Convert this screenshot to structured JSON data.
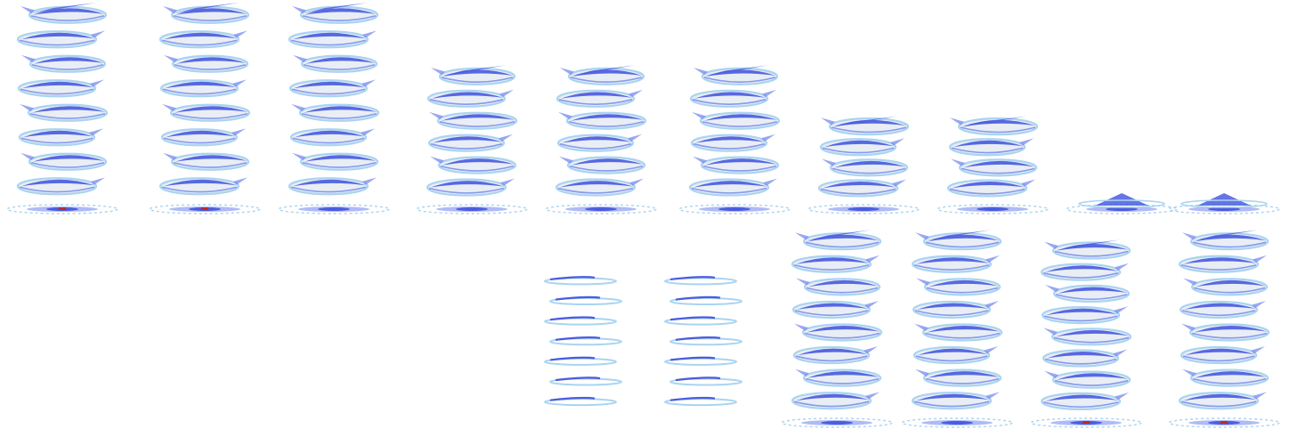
{
  "sheet": {
    "kind": "sprite-sheet",
    "subject": "tornado",
    "background": "#ffffff",
    "colors": {
      "deep_blue": "#4b5ce0",
      "mid_blue": "#6f82ee",
      "light_blue": "#a9d4f0",
      "pale": "#e8eef4",
      "core_red": "#c8281e"
    },
    "frames": [
      {
        "id": "f1",
        "height": 1.0,
        "rings": 8,
        "ground": true,
        "core": true,
        "style": "full"
      },
      {
        "id": "f2",
        "height": 1.0,
        "rings": 8,
        "ground": true,
        "core": true,
        "style": "full"
      },
      {
        "id": "f3",
        "height": 1.0,
        "rings": 8,
        "ground": true,
        "core": false,
        "style": "full"
      },
      {
        "id": "f4",
        "height": 0.68,
        "rings": 6,
        "ground": true,
        "core": false,
        "style": "full"
      },
      {
        "id": "f5",
        "height": 0.68,
        "rings": 6,
        "ground": true,
        "core": false,
        "style": "full"
      },
      {
        "id": "f6",
        "height": 0.68,
        "rings": 6,
        "ground": true,
        "core": false,
        "style": "full"
      },
      {
        "id": "f7",
        "height": 0.42,
        "rings": 4,
        "ground": true,
        "core": false,
        "style": "full"
      },
      {
        "id": "f8",
        "height": 0.42,
        "rings": 4,
        "ground": true,
        "core": false,
        "style": "full"
      },
      {
        "id": "f9",
        "height": 0.12,
        "rings": 1,
        "ground": true,
        "core": false,
        "style": "base"
      },
      {
        "id": "f10",
        "height": 0.1,
        "rings": 1,
        "ground": true,
        "core": false,
        "style": "base"
      },
      {
        "id": "f11",
        "height": 0.72,
        "rings": 7,
        "ground": false,
        "core": false,
        "style": "thin"
      },
      {
        "id": "f12",
        "height": 0.72,
        "rings": 7,
        "ground": false,
        "core": false,
        "style": "thin"
      },
      {
        "id": "f13",
        "height": 0.93,
        "rings": 8,
        "ground": true,
        "core": false,
        "style": "full"
      },
      {
        "id": "f14",
        "height": 0.93,
        "rings": 8,
        "ground": true,
        "core": false,
        "style": "full"
      },
      {
        "id": "f15",
        "height": 0.88,
        "rings": 8,
        "ground": true,
        "core": true,
        "style": "full"
      },
      {
        "id": "f16",
        "height": 0.93,
        "rings": 8,
        "ground": true,
        "core": true,
        "style": "full"
      }
    ]
  }
}
